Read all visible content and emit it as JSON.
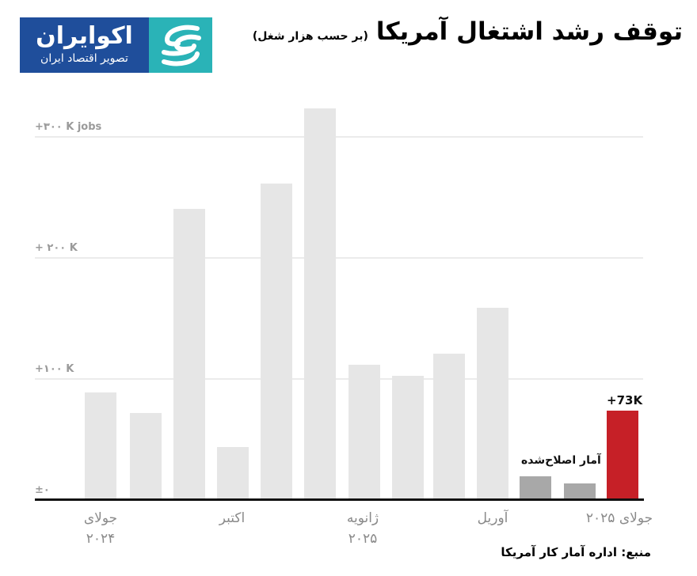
{
  "logo": {
    "name": "اکوایران",
    "tagline": "تصویر اقتصاد ایران",
    "colors": {
      "text_bg": "#1f4e9b",
      "mark_bg": "#2ab3b7"
    }
  },
  "header": {
    "title": "توقف رشد اشتغال آمریکا",
    "subtitle": "(بر حسب هزار شغل)"
  },
  "y_axis": {
    "ticks": [
      {
        "label": "+۳۰۰ K jobs",
        "value": 300
      },
      {
        "label": "+ ۲۰۰ K",
        "value": 200
      },
      {
        "label": "+۱۰۰ K",
        "value": 100
      },
      {
        "label": "±۰",
        "value": 0
      }
    ]
  },
  "x_axis": {
    "labels": [
      {
        "line1": "جولای",
        "line2": "۲۰۲۴",
        "bar_index": 0
      },
      {
        "line1": "اکتبر",
        "line2": "",
        "bar_index": 3
      },
      {
        "line1": "ژانویه",
        "line2": "۲۰۲۵",
        "bar_index": 6
      },
      {
        "line1": "آوریل",
        "line2": "",
        "bar_index": 9
      },
      {
        "line1": "جولای ۲۰۲۵",
        "line2": "",
        "bar_index": 12
      }
    ]
  },
  "annotations": {
    "revised_label": "آمار اصلاح‌شده",
    "latest_value_label": "+73K"
  },
  "source": "منبع: اداره آمار کار آمریکا",
  "colors": {
    "bar_default": "#e6e6e6",
    "bar_revised": "#a8a8a8",
    "bar_latest": "#c62027",
    "gridline": "#ebebeb",
    "baseline": "#111111"
  },
  "chart_data": {
    "type": "bar",
    "title": "توقف رشد اشتغال آمریکا",
    "subtitle": "(بر حسب هزار شغل)",
    "xlabel": "",
    "ylabel": "K jobs",
    "ylim": [
      0,
      330
    ],
    "grid": true,
    "categories": [
      "Jul 2024",
      "Aug 2024",
      "Sep 2024",
      "Oct 2024",
      "Nov 2024",
      "Dec 2024",
      "Jan 2025",
      "Feb 2025",
      "Mar 2025",
      "Apr 2025",
      "May 2025",
      "Jun 2025",
      "Jul 2025"
    ],
    "values": [
      88,
      71,
      240,
      43,
      261,
      323,
      111,
      102,
      120,
      158,
      19,
      13,
      73
    ],
    "bar_types": [
      "default",
      "default",
      "default",
      "default",
      "default",
      "default",
      "default",
      "default",
      "default",
      "default",
      "revised",
      "revised",
      "latest"
    ],
    "tick_labels_x": [
      "جولای ۲۰۲۴",
      "اکتبر",
      "ژانویه ۲۰۲۵",
      "آوریل",
      "جولای ۲۰۲۵"
    ],
    "tick_labels_y": [
      "±۰",
      "+۱۰۰ K",
      "+ ۲۰۰ K",
      "+۳۰۰ K jobs"
    ],
    "annotations": [
      {
        "text": "آمار اصلاح‌شده",
        "target": [
          "May 2025",
          "Jun 2025"
        ]
      },
      {
        "text": "+73K",
        "target": "Jul 2025"
      }
    ],
    "legend": null
  }
}
